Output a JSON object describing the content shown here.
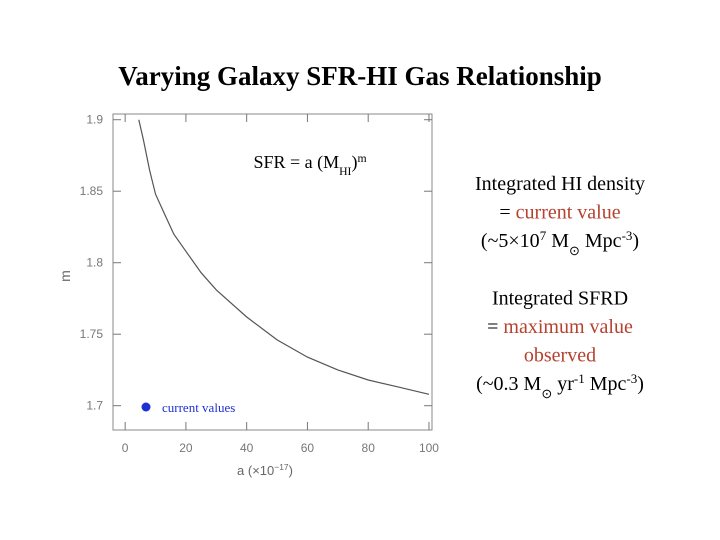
{
  "slide_title": "Varying Galaxy SFR-HI Gas Relationship",
  "chart_data": {
    "type": "line",
    "x": [
      4.5,
      6,
      8,
      10,
      13,
      16,
      20,
      25,
      30,
      40,
      50,
      60,
      70,
      80,
      90,
      100
    ],
    "series": [
      {
        "color": "#555555",
        "values": [
          1.9,
          1.886,
          1.865,
          1.848,
          1.834,
          1.82,
          1.808,
          1.793,
          1.781,
          1.762,
          1.746,
          1.734,
          1.725,
          1.718,
          1.713,
          1.708
        ]
      }
    ],
    "xlim": [
      -4,
      101
    ],
    "ylim": [
      1.683,
      1.904
    ],
    "xticks": [
      0,
      20,
      40,
      60,
      80,
      100
    ],
    "yticks": [
      1.7,
      1.75,
      1.8,
      1.85,
      1.9
    ],
    "ylabel": "m",
    "xlabel": [
      {
        "t": "a  (×10"
      },
      {
        "t": "−17",
        "k": "sup"
      },
      {
        "t": ")"
      }
    ],
    "annotation": [
      {
        "t": "SFR = a (M"
      },
      {
        "t": "HI",
        "k": "sub"
      },
      {
        "t": ")"
      },
      {
        "t": "m",
        "k": "sup"
      }
    ],
    "legend": {
      "label": "current values",
      "color": "#1f2fd6"
    }
  },
  "side_text": [
    [
      [
        {
          "t": "Integrated HI density"
        }
      ],
      [
        {
          "t": "= "
        },
        {
          "t": "current value",
          "color": "#b5412f"
        }
      ],
      [
        {
          "t": "(~5×10"
        },
        {
          "t": "7",
          "k": "sup"
        },
        {
          "t": " M"
        },
        {
          "t": "⊙",
          "k": "sub"
        },
        {
          "t": " Mpc"
        },
        {
          "t": "-3",
          "k": "sup"
        },
        {
          "t": ")"
        }
      ]
    ],
    [
      [
        {
          "t": "Integrated SFRD"
        }
      ],
      [
        {
          "t": "= "
        },
        {
          "t": "maximum value",
          "color": "#b5412f"
        }
      ],
      [
        {
          "t": "observed",
          "color": "#b5412f"
        }
      ],
      [
        {
          "t": "(~0.3 M"
        },
        {
          "t": "⊙",
          "k": "sub"
        },
        {
          "t": " yr"
        },
        {
          "t": "-1",
          "k": "sup"
        },
        {
          "t": " Mpc"
        },
        {
          "t": "-3",
          "k": "sup"
        },
        {
          "t": ")"
        }
      ]
    ]
  ]
}
